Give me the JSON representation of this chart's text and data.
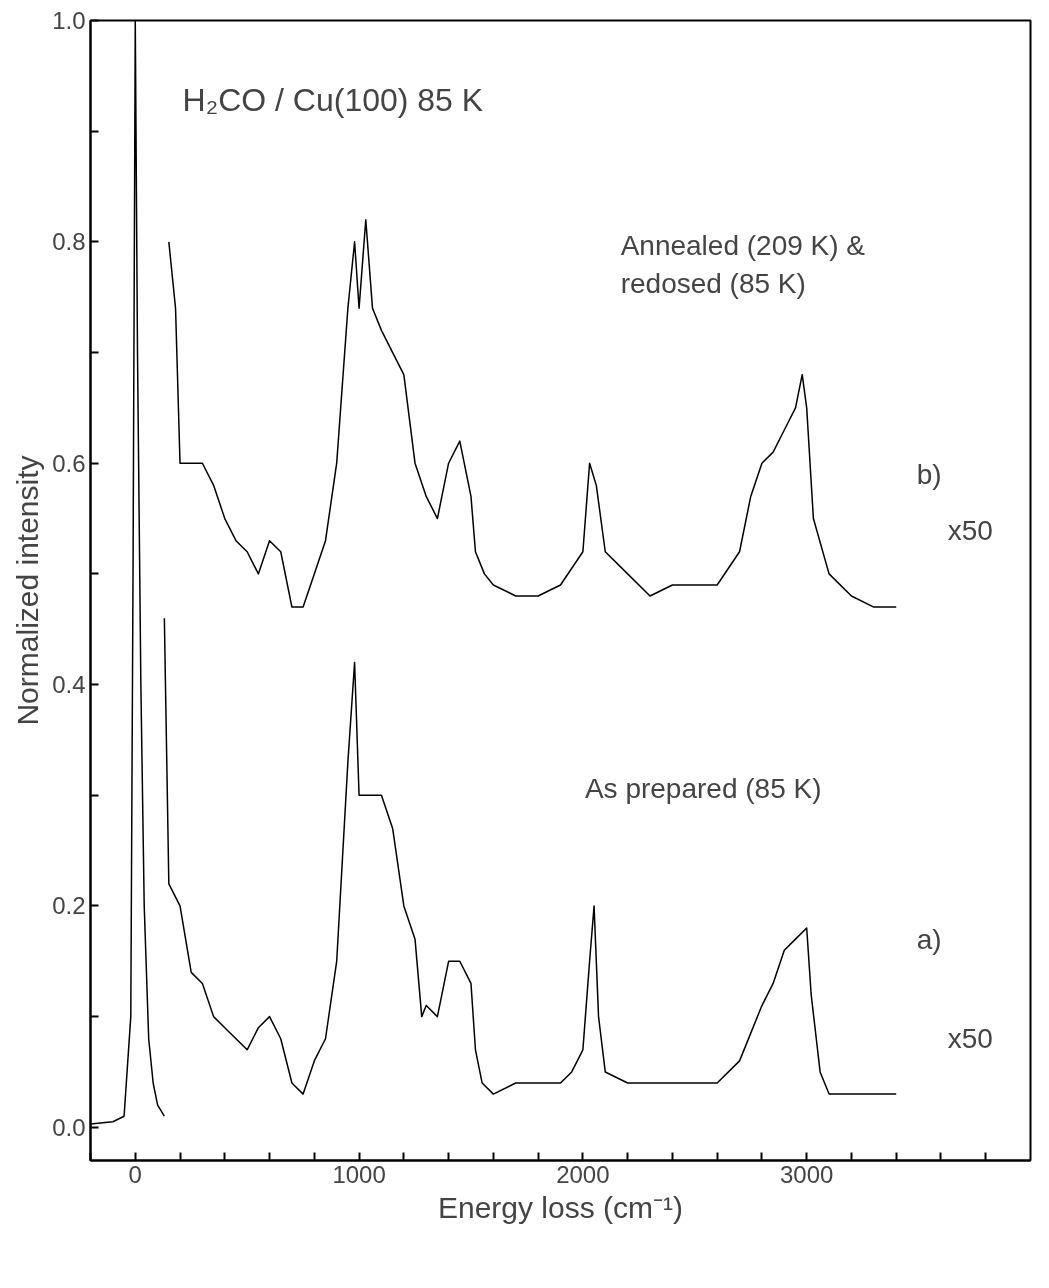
{
  "chart_data": {
    "type": "line",
    "title": "H₂CO / Cu(100) 85 K",
    "xlabel": "Energy loss (cm⁻¹)",
    "ylabel": "Normalized intensity",
    "xlim": [
      -200,
      4000
    ],
    "ylim": [
      -0.03,
      1.0
    ],
    "xticks": [
      {
        "value": -200,
        "label": null
      },
      0,
      {
        "value": 200,
        "label": null
      },
      {
        "value": 400,
        "label": null
      },
      {
        "value": 600,
        "label": null
      },
      {
        "value": 800,
        "label": null
      },
      1000,
      {
        "value": 1200,
        "label": null
      },
      {
        "value": 1400,
        "label": null
      },
      {
        "value": 1600,
        "label": null
      },
      {
        "value": 1800,
        "label": null
      },
      2000,
      {
        "value": 2200,
        "label": null
      },
      {
        "value": 2400,
        "label": null
      },
      {
        "value": 2600,
        "label": null
      },
      {
        "value": 2800,
        "label": null
      },
      3000,
      {
        "value": 3200,
        "label": null
      },
      {
        "value": 3400,
        "label": null
      },
      {
        "value": 3600,
        "label": null
      },
      {
        "value": 3800,
        "label": null
      }
    ],
    "yticks": [
      {
        "value": 0,
        "label": "0.0"
      },
      {
        "value": 0.1,
        "label": null
      },
      0.2,
      {
        "value": 0.3,
        "label": null
      },
      0.4,
      {
        "value": 0.5,
        "label": null
      },
      0.6,
      {
        "value": 0.7,
        "label": null
      },
      0.8,
      {
        "value": 0.9,
        "label": null
      },
      {
        "value": 1.0,
        "label": "1.0"
      }
    ],
    "grid": false,
    "line_style": "solid",
    "series": [
      {
        "color": "#000000",
        "x": [
          -200,
          -100,
          -50,
          -20,
          -10,
          0,
          10,
          25,
          40,
          60,
          80,
          100,
          130
        ],
        "values": [
          0.003,
          0.005,
          0.01,
          0.1,
          0.5,
          1.0,
          0.7,
          0.4,
          0.2,
          0.08,
          0.04,
          0.02,
          0.01
        ]
      },
      {
        "color": "#000000",
        "x": [
          130,
          150,
          200,
          250,
          300,
          350,
          400,
          450,
          500,
          550,
          600,
          650,
          700,
          750,
          800,
          850,
          900,
          950,
          980,
          1000,
          1050,
          1100,
          1150,
          1200,
          1250,
          1280,
          1300,
          1350,
          1400,
          1450,
          1500,
          1520,
          1550,
          1600,
          1700,
          1800,
          1900,
          1950,
          2000,
          2030,
          2050,
          2070,
          2100,
          2200,
          2300,
          2400,
          2500,
          2600,
          2700,
          2800,
          2850,
          2900,
          2950,
          3000,
          3020,
          3060,
          3100,
          3200,
          3300,
          3400
        ],
        "values": [
          0.46,
          0.22,
          0.2,
          0.14,
          0.13,
          0.1,
          0.09,
          0.08,
          0.07,
          0.09,
          0.1,
          0.08,
          0.04,
          0.03,
          0.06,
          0.08,
          0.15,
          0.33,
          0.42,
          0.3,
          0.3,
          0.3,
          0.27,
          0.2,
          0.17,
          0.1,
          0.11,
          0.1,
          0.15,
          0.15,
          0.13,
          0.07,
          0.04,
          0.03,
          0.04,
          0.04,
          0.04,
          0.05,
          0.07,
          0.15,
          0.2,
          0.1,
          0.05,
          0.04,
          0.04,
          0.04,
          0.04,
          0.04,
          0.06,
          0.11,
          0.13,
          0.16,
          0.17,
          0.18,
          0.12,
          0.05,
          0.03,
          0.03,
          0.03,
          0.03
        ]
      },
      {
        "color": "#000000",
        "x": [
          150,
          180,
          200,
          250,
          300,
          350,
          400,
          450,
          500,
          550,
          600,
          650,
          700,
          750,
          800,
          850,
          900,
          950,
          980,
          1000,
          1030,
          1060,
          1100,
          1150,
          1200,
          1250,
          1300,
          1350,
          1400,
          1450,
          1500,
          1520,
          1560,
          1600,
          1700,
          1800,
          1900,
          2000,
          2030,
          2060,
          2100,
          2200,
          2300,
          2400,
          2500,
          2600,
          2700,
          2750,
          2800,
          2850,
          2900,
          2950,
          2980,
          3000,
          3030,
          3100,
          3200,
          3300,
          3400
        ],
        "values": [
          0.8,
          0.74,
          0.6,
          0.6,
          0.6,
          0.58,
          0.55,
          0.53,
          0.52,
          0.5,
          0.53,
          0.52,
          0.47,
          0.47,
          0.5,
          0.53,
          0.6,
          0.74,
          0.8,
          0.74,
          0.82,
          0.74,
          0.72,
          0.7,
          0.68,
          0.6,
          0.57,
          0.55,
          0.6,
          0.62,
          0.57,
          0.52,
          0.5,
          0.49,
          0.48,
          0.48,
          0.49,
          0.52,
          0.6,
          0.58,
          0.52,
          0.5,
          0.48,
          0.49,
          0.49,
          0.49,
          0.52,
          0.57,
          0.6,
          0.61,
          0.63,
          0.65,
          0.68,
          0.65,
          0.55,
          0.5,
          0.48,
          0.47,
          0.47
        ]
      }
    ],
    "annotations": [
      "As prepared (85 K)",
      "a)",
      "x50",
      "Annealed (209 K) &\nredosed (85 K)",
      "b)",
      "x50"
    ]
  }
}
